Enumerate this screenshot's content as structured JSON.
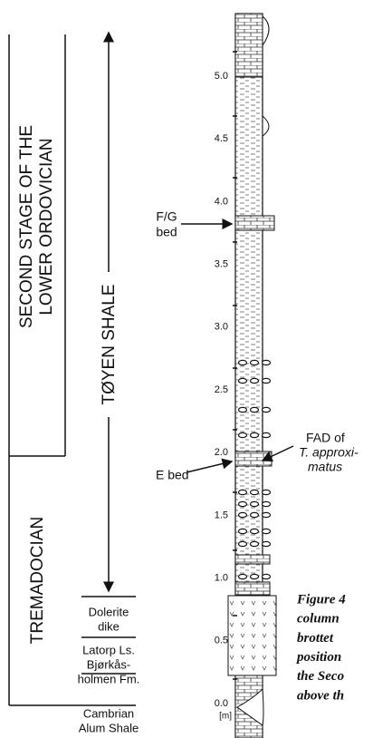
{
  "stages": {
    "upper": [
      "SECOND STAGE  OF THE",
      "LOWER ORDOVICIAN"
    ],
    "lower": "TREMADOCIAN"
  },
  "formation": "TØYEN SHALE",
  "units": {
    "dolerite": [
      "Dolerite",
      "dike"
    ],
    "latorp": "Latorp Ls.",
    "bjorkas": [
      "Bjørkås-",
      "holmen Fm."
    ],
    "alum": [
      "Cambrian",
      "Alum Shale"
    ]
  },
  "beds": {
    "fg": [
      "F/G",
      "bed"
    ],
    "e": "E bed",
    "fad": [
      "FAD of",
      "T. approxi-",
      "matus"
    ]
  },
  "scale": {
    "ticks": [
      "0.0",
      "0.5",
      "1.0",
      "1.5",
      "2.0",
      "2.5",
      "3.0",
      "3.5",
      "4.0",
      "4.5",
      "5.0"
    ],
    "unit": "[m]"
  },
  "caption": [
    "Figure 4",
    "column",
    "brottet",
    "position",
    "the Seco",
    "above th"
  ]
}
